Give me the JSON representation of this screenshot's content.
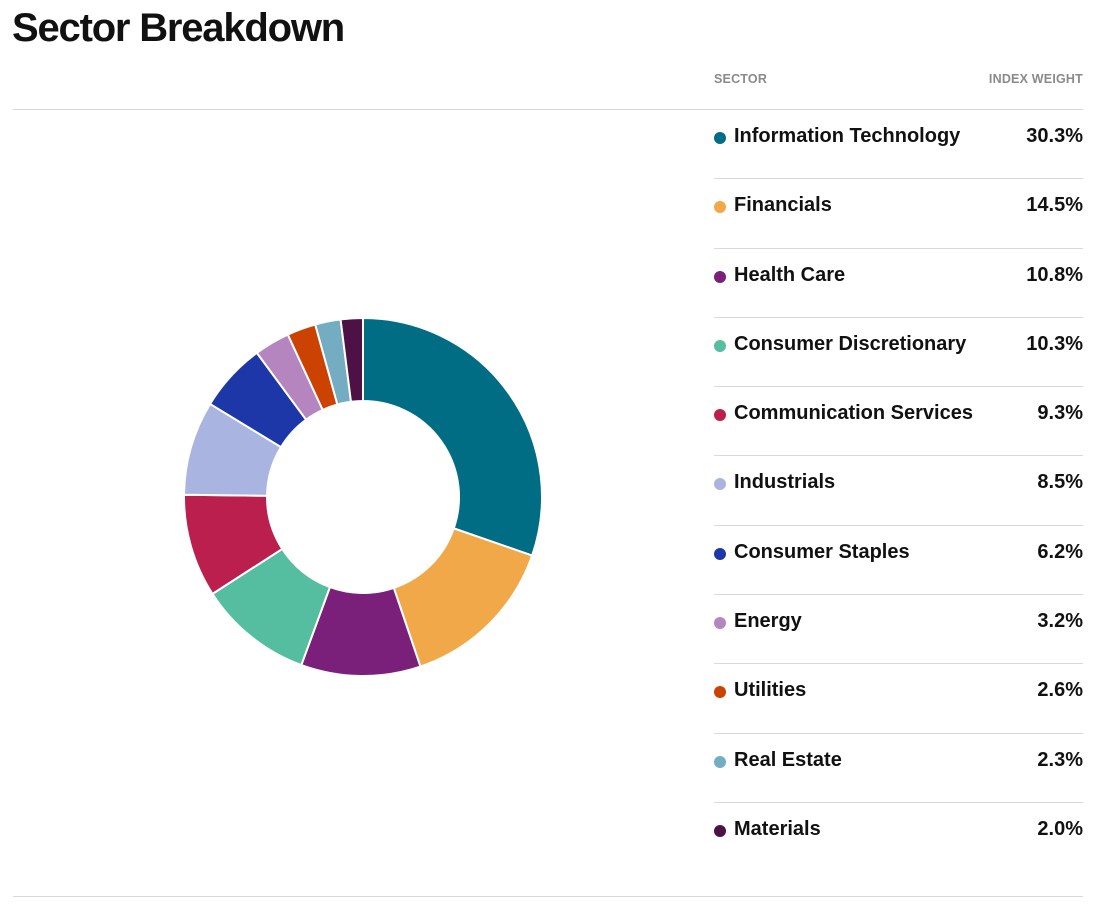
{
  "page": {
    "title": "Sector Breakdown"
  },
  "table": {
    "sector_header": "SECTOR",
    "weight_header": "INDEX WEIGHT"
  },
  "chart_data": {
    "type": "pie",
    "donut": true,
    "categories": [
      "Information Technology",
      "Financials",
      "Health Care",
      "Consumer Discretionary",
      "Communication Services",
      "Industrials",
      "Consumer Staples",
      "Energy",
      "Utilities",
      "Real Estate",
      "Materials"
    ],
    "values": [
      30.3,
      14.5,
      10.8,
      10.3,
      9.3,
      8.5,
      6.2,
      3.2,
      2.6,
      2.3,
      2.0
    ],
    "value_labels": [
      "30.3%",
      "14.5%",
      "10.8%",
      "10.3%",
      "9.3%",
      "8.5%",
      "6.2%",
      "3.2%",
      "2.6%",
      "2.3%",
      "2.0%"
    ],
    "colors": [
      "#006d85",
      "#f0a848",
      "#7a1f7a",
      "#55bda0",
      "#bb1f4d",
      "#a9b4e0",
      "#1e37a8",
      "#b585bf",
      "#cc4200",
      "#74adc2",
      "#4d1145"
    ],
    "legend_placement": "right"
  }
}
